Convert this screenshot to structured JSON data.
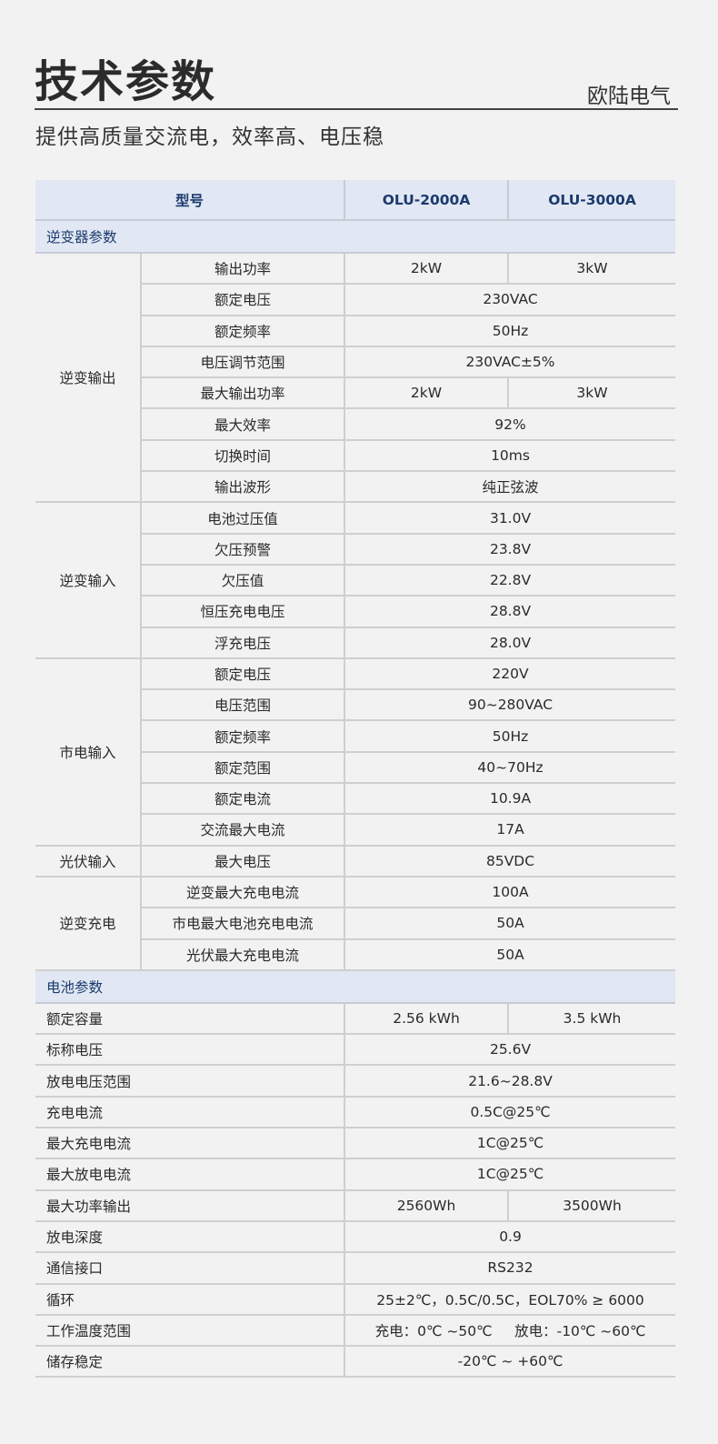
{
  "header": {
    "title": "技术参数",
    "brand": "欧陆电气",
    "subtitle": "提供高质量交流电，效率高、电压稳"
  },
  "colors": {
    "header_bg": "#e1e8f3",
    "header_text": "#1b3a6e",
    "background": "#f2f2f2"
  },
  "table": {
    "model_label": "型号",
    "models": [
      "OLU-2000A",
      "OLU-3000A"
    ],
    "inverter_section": "逆变器参数",
    "inverter_groups": [
      {
        "name": "逆变输出",
        "rows": [
          {
            "param": "输出功率",
            "values": [
              "2kW",
              "3kW"
            ]
          },
          {
            "param": "额定电压",
            "values": [
              "230VAC"
            ]
          },
          {
            "param": "额定频率",
            "values": [
              "50Hz"
            ]
          },
          {
            "param": "电压调节范围",
            "values": [
              "230VAC±5%"
            ]
          },
          {
            "param": "最大输出功率",
            "values": [
              "2kW",
              "3kW"
            ]
          },
          {
            "param": "最大效率",
            "values": [
              "92%"
            ]
          },
          {
            "param": "切换时间",
            "values": [
              "10ms"
            ]
          },
          {
            "param": "输出波形",
            "values": [
              "纯正弦波"
            ]
          }
        ]
      },
      {
        "name": "逆变输入",
        "rows": [
          {
            "param": "电池过压值",
            "values": [
              "31.0V"
            ]
          },
          {
            "param": "欠压预警",
            "values": [
              "23.8V"
            ]
          },
          {
            "param": "欠压值",
            "values": [
              "22.8V"
            ]
          },
          {
            "param": "恒压充电电压",
            "values": [
              "28.8V"
            ]
          },
          {
            "param": "浮充电压",
            "values": [
              "28.0V"
            ]
          }
        ]
      },
      {
        "name": "市电输入",
        "rows": [
          {
            "param": "额定电压",
            "values": [
              "220V"
            ]
          },
          {
            "param": "电压范围",
            "values": [
              "90~280VAC"
            ]
          },
          {
            "param": "额定频率",
            "values": [
              "50Hz"
            ]
          },
          {
            "param": "额定范围",
            "values": [
              "40~70Hz"
            ]
          },
          {
            "param": "额定电流",
            "values": [
              "10.9A"
            ]
          },
          {
            "param": "交流最大电流",
            "values": [
              "17A"
            ]
          }
        ]
      },
      {
        "name": "光伏输入",
        "rows": [
          {
            "param": "最大电压",
            "values": [
              "85VDC"
            ]
          }
        ]
      },
      {
        "name": "逆变充电",
        "rows": [
          {
            "param": "逆变最大充电电流",
            "values": [
              "100A"
            ]
          },
          {
            "param": "市电最大电池充电电流",
            "values": [
              "50A"
            ]
          },
          {
            "param": "光伏最大充电电流",
            "values": [
              "50A"
            ]
          }
        ]
      }
    ],
    "battery_section": "电池参数",
    "battery_rows": [
      {
        "param": "额定容量",
        "values": [
          "2.56 kWh",
          "3.5 kWh"
        ]
      },
      {
        "param": "标称电压",
        "values": [
          "25.6V"
        ]
      },
      {
        "param": "放电电压范围",
        "values": [
          "21.6~28.8V"
        ]
      },
      {
        "param": "充电电流",
        "values": [
          "0.5C@25℃"
        ]
      },
      {
        "param": "最大充电电流",
        "values": [
          "1C@25℃"
        ]
      },
      {
        "param": "最大放电电流",
        "values": [
          "1C@25℃"
        ]
      },
      {
        "param": "最大功率输出",
        "values": [
          "2560Wh",
          "3500Wh"
        ]
      },
      {
        "param": "放电深度",
        "values": [
          "0.9"
        ]
      },
      {
        "param": "通信接口",
        "values": [
          "RS232"
        ]
      },
      {
        "param": "循环",
        "values": [
          "25±2℃，0.5C/0.5C，EOL70% ≥ 6000"
        ]
      },
      {
        "param": "工作温度范围",
        "values": [
          "充电：0℃ ~50℃     放电：-10℃ ~60℃"
        ]
      },
      {
        "param": "储存稳定",
        "values": [
          "-20℃ ~ +60℃"
        ]
      }
    ]
  }
}
